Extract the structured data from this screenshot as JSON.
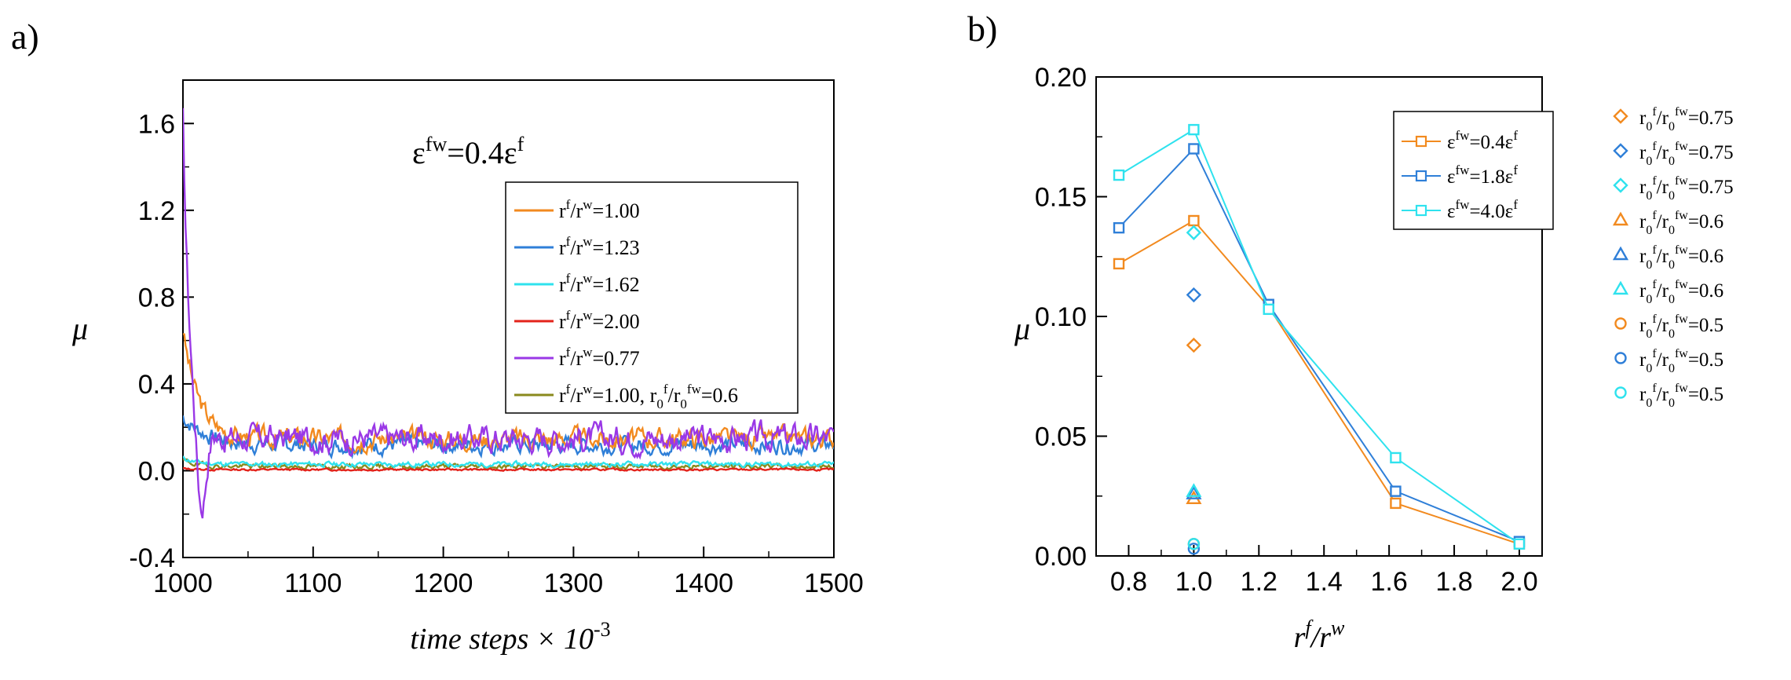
{
  "colors": {
    "orange": "#f28a1f",
    "blue": "#2f7fd8",
    "cyan": "#2fe2ee",
    "red": "#e3231b",
    "purple": "#9a38e6",
    "olive": "#8a8a1e"
  },
  "chart_data": [
    {
      "type": "line",
      "panel_label": "a)",
      "annotation": {
        "base": "ε",
        "sup": "fw",
        "mid": "=0.4ε",
        "sup2": "f"
      },
      "xlabel": {
        "main": "time steps × 10",
        "sup": "-3"
      },
      "ylabel": "μ",
      "xlim": [
        1000,
        1500
      ],
      "ylim": [
        -0.4,
        1.8
      ],
      "xticks": [
        1000,
        1100,
        1200,
        1300,
        1400,
        1500
      ],
      "yticks": [
        -0.4,
        0.0,
        0.4,
        0.8,
        1.2,
        1.6
      ],
      "ytick_labels": [
        "-0.4",
        "0.0",
        "0.4",
        "0.8",
        "1.2",
        "1.6"
      ],
      "legend": {
        "position": "right",
        "entries": [
          {
            "a": "r",
            "as": "f",
            "b": "/r",
            "bs": "w",
            "c": "=1.00",
            "color_key": "orange"
          },
          {
            "a": "r",
            "as": "f",
            "b": "/r",
            "bs": "w",
            "c": "=1.23",
            "color_key": "blue"
          },
          {
            "a": "r",
            "as": "f",
            "b": "/r",
            "bs": "w",
            "c": "=1.62",
            "color_key": "cyan"
          },
          {
            "a": "r",
            "as": "f",
            "b": "/r",
            "bs": "w",
            "c": "=2.00",
            "color_key": "red"
          },
          {
            "a": "r",
            "as": "f",
            "b": "/r",
            "bs": "w",
            "c": "=0.77",
            "color_key": "purple"
          },
          {
            "a": "r",
            "as": "f",
            "b": "/r",
            "bs": "w",
            "c": "=1.00, r",
            "cs": "0",
            "d": "f",
            "e": "/r",
            "es": "0",
            "f": "fw",
            "g": "=0.6",
            "color_key": "olive"
          }
        ]
      },
      "series": [
        {
          "name": "r^f/r^w=1.00",
          "color_key": "orange",
          "peak": 0.65,
          "decay": 12,
          "base": 0.15,
          "noise": 0.04,
          "seed": 3
        },
        {
          "name": "r^f/r^w=1.23",
          "color_key": "blue",
          "peak": 0.25,
          "decay": 18,
          "base": 0.12,
          "noise": 0.035,
          "seed": 7
        },
        {
          "name": "r^f/r^w=1.62",
          "color_key": "cyan",
          "peak": 0.06,
          "decay": 10,
          "base": 0.03,
          "noise": 0.01,
          "seed": 11
        },
        {
          "name": "r^f/r^w=2.00",
          "color_key": "red",
          "peak": 0.01,
          "decay": 10,
          "base": 0.005,
          "noise": 0.004,
          "seed": 13
        },
        {
          "name": "r^f/r^w=0.77",
          "color_key": "purple",
          "peak": 1.63,
          "decay": 5,
          "base": 0.15,
          "noise": 0.055,
          "seed": 17,
          "dip": -0.35
        },
        {
          "name": "r^f/r^w=1.00, r0^f/r0^fw=0.6",
          "color_key": "olive",
          "peak": 0.05,
          "decay": 10,
          "base": 0.02,
          "noise": 0.01,
          "seed": 19
        }
      ]
    },
    {
      "type": "line+scatter",
      "panel_label": "b)",
      "xlabel": {
        "a": "r",
        "as": "f",
        "b": "/r",
        "bs": "w"
      },
      "ylabel": "μ",
      "xlim": [
        0.7,
        2.07
      ],
      "ylim": [
        0.0,
        0.2
      ],
      "xticks": [
        0.8,
        1.0,
        1.2,
        1.4,
        1.6,
        1.8,
        2.0
      ],
      "xtick_labels": [
        "0.8",
        "1.0",
        "1.2",
        "1.4",
        "1.6",
        "1.8",
        "2.0"
      ],
      "yticks": [
        0.0,
        0.05,
        0.1,
        0.15,
        0.2
      ],
      "ytick_labels": [
        "0.00",
        "0.05",
        "0.10",
        "0.15",
        "0.20"
      ],
      "x": [
        0.77,
        1.0,
        1.23,
        1.62,
        2.0
      ],
      "series": [
        {
          "name": "ε^fw=0.4ε^f",
          "label": {
            "a": "ε",
            "as": "fw",
            "b": "=0.4ε",
            "bs": "f"
          },
          "color_key": "orange",
          "values": [
            0.122,
            0.14,
            0.104,
            0.022,
            0.005
          ]
        },
        {
          "name": "ε^fw=1.8ε^f",
          "label": {
            "a": "ε",
            "as": "fw",
            "b": "=1.8ε",
            "bs": "f"
          },
          "color_key": "blue",
          "values": [
            0.137,
            0.17,
            0.105,
            0.027,
            0.006
          ]
        },
        {
          "name": "ε^fw=4.0ε^f",
          "label": {
            "a": "ε",
            "as": "fw",
            "b": "=4.0ε",
            "bs": "f"
          },
          "color_key": "cyan",
          "values": [
            0.159,
            0.178,
            0.103,
            0.041,
            0.005
          ]
        }
      ],
      "scatter": [
        {
          "marker": "diamond",
          "color_key": "orange",
          "label": "0.75",
          "x": 1.0,
          "y": 0.088
        },
        {
          "marker": "diamond",
          "color_key": "blue",
          "label": "0.75",
          "x": 1.0,
          "y": 0.109
        },
        {
          "marker": "diamond",
          "color_key": "cyan",
          "label": "0.75",
          "x": 1.0,
          "y": 0.135
        },
        {
          "marker": "triangle",
          "color_key": "orange",
          "label": "0.6",
          "x": 1.0,
          "y": 0.024
        },
        {
          "marker": "triangle",
          "color_key": "blue",
          "label": "0.6",
          "x": 1.0,
          "y": 0.026
        },
        {
          "marker": "triangle",
          "color_key": "cyan",
          "label": "0.6",
          "x": 1.0,
          "y": 0.027
        },
        {
          "marker": "circle",
          "color_key": "orange",
          "label": "0.5",
          "x": 1.0,
          "y": 0.005
        },
        {
          "marker": "circle",
          "color_key": "blue",
          "label": "0.5",
          "x": 1.0,
          "y": 0.003
        },
        {
          "marker": "circle",
          "color_key": "cyan",
          "label": "0.5",
          "x": 1.0,
          "y": 0.005
        }
      ],
      "scatter_label_prefix": {
        "a": "r",
        "as": "0",
        "ap": "f",
        "b": "/r",
        "bs": "0",
        "bp": "fw",
        "c": "="
      }
    }
  ]
}
